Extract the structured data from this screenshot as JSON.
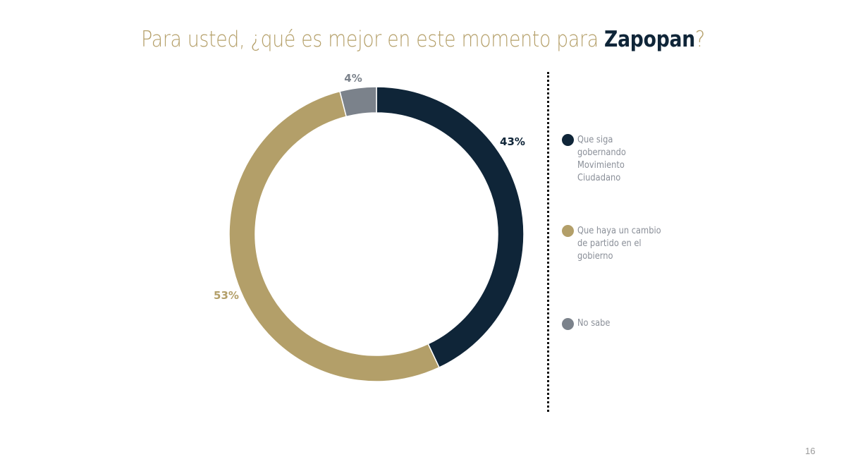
{
  "title": {
    "prefix": "Para usted, ¿qué es mejor en este momento para ",
    "highlight": "Zapopan",
    "suffix": "?"
  },
  "chart_data": {
    "type": "pie",
    "variant": "donut",
    "title": "Para usted, ¿qué es mejor en este momento para Zapopan?",
    "categories": [
      "Que siga gobernando Movimiento Ciudadano",
      "Que haya un cambio de partido en el gobierno",
      "No sabe"
    ],
    "values": [
      43,
      53,
      4
    ],
    "labels": [
      "43%",
      "53%",
      "4%"
    ],
    "colors": [
      "#0f2538",
      "#b39f69",
      "#7b828b"
    ],
    "start": "top",
    "direction": "clockwise",
    "legend_position": "right"
  },
  "legend": [
    {
      "label": "Que siga gobernando Movimiento Ciudadano",
      "color": "#0f2538"
    },
    {
      "label": "Que haya un cambio de partido en el gobierno",
      "color": "#b39f69"
    },
    {
      "label": "No sabe",
      "color": "#7b828b"
    }
  ],
  "page_number": "16"
}
